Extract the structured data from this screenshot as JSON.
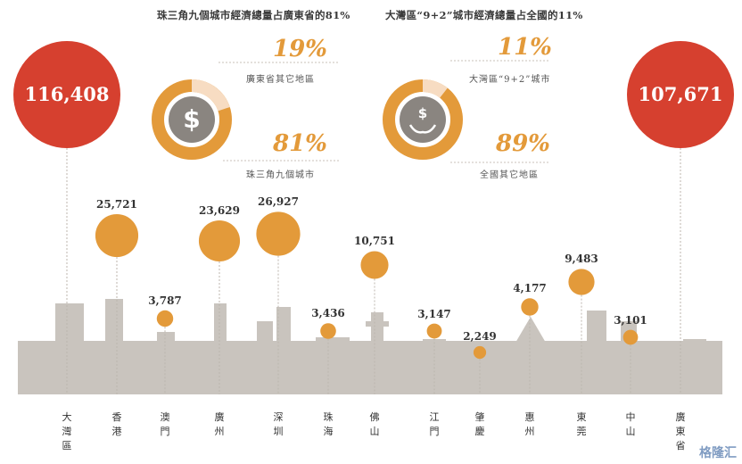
{
  "header": {
    "left_title": "珠三角九個城市經濟總量占廣東省的81%",
    "right_title": "大灣區“9+2”城市經濟總量占全國的11%"
  },
  "donut_left": {
    "pct_small": "19%",
    "label_small": "廣東省其它地區",
    "pct_large": "81%",
    "label_large": "珠三角九個城市",
    "icon": "dollar-coin-icon"
  },
  "donut_right": {
    "pct_small": "11%",
    "label_small": "大灣區“9+2”城市",
    "pct_large": "89%",
    "label_large": "全國其它地區",
    "icon": "hands-dollar-icon"
  },
  "colors": {
    "accent": "#e39a3a",
    "red": "#d6402f",
    "pale": "#f7dcc2",
    "skyline": "#c9c4be",
    "line": "#bcb6ae"
  },
  "chart_data": {
    "type": "bubble",
    "categories": [
      "大灣區",
      "香港",
      "澳門",
      "廣州",
      "深圳",
      "珠海",
      "佛山",
      "江門",
      "肇慶",
      "惠州",
      "東莞",
      "中山",
      "廣東省"
    ],
    "values": [
      116408,
      25721,
      3787,
      23629,
      26927,
      3436,
      10751,
      3147,
      2249,
      4177,
      9483,
      3101,
      107671
    ],
    "value_labels": [
      "116,408",
      "25,721",
      "3,787",
      "23,629",
      "26,927",
      "3,436",
      "10,751",
      "3,147",
      "2,249",
      "4,177",
      "9,483",
      "3,101",
      "107,671"
    ],
    "xlabel": "",
    "ylabel": ""
  },
  "watermark": "格隆汇"
}
